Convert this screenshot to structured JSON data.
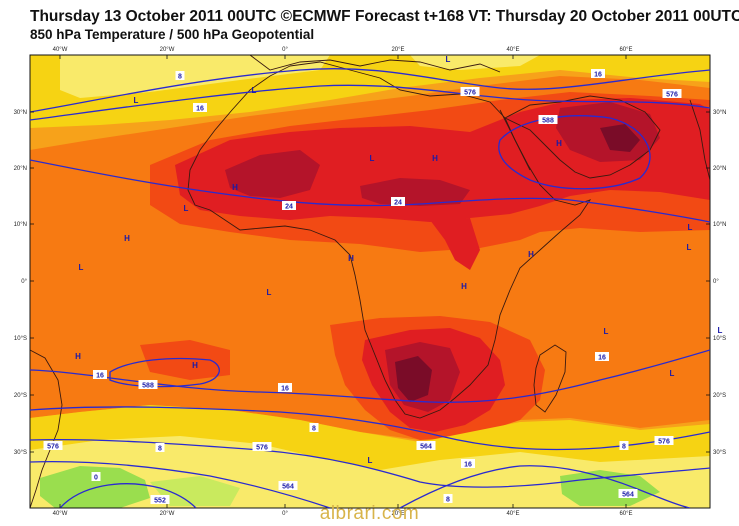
{
  "header": {
    "title": "Thursday 13 October 2011 00UTC ©ECMWF Forecast t+168 VT: Thursday 20 October 2011 00UTC",
    "subtitle": "850 hPa Temperature / 500 hPa Geopotential"
  },
  "axes": {
    "lon_ticks": [
      "40°W",
      "20°W",
      "0°",
      "20°E",
      "40°E",
      "60°E"
    ],
    "lat_ticks": [
      "30°N",
      "20°N",
      "10°N",
      "0°",
      "10°S",
      "20°S",
      "30°S"
    ]
  },
  "contour_labels": [
    "8",
    "16",
    "576",
    "16",
    "576",
    "588",
    "24",
    "24",
    "16",
    "588",
    "16",
    "8",
    "16",
    "576",
    "8",
    "564",
    "0",
    "552",
    "576",
    "564",
    "16",
    "8",
    "8",
    "576",
    "564"
  ],
  "pressure_centres": [
    "L",
    "L",
    "H",
    "L",
    "H",
    "L",
    "H",
    "H",
    "L",
    "H",
    "L",
    "H",
    "L",
    "L",
    "H",
    "L",
    "H",
    "H",
    "L",
    "L",
    "L",
    "L"
  ],
  "colors": {
    "ocean_warm": "#f7a21a",
    "temp_orange": "#f77a12",
    "temp_red_orange": "#f24a14",
    "temp_red": "#e01e22",
    "temp_dark_red": "#b4142a",
    "temp_maroon": "#7a0c28",
    "temp_yellow": "#f6d313",
    "temp_light_yellow": "#f9ea6a",
    "temp_green": "#9ade4e",
    "contour_blue": "#2a2ad0"
  },
  "watermark": "albrari.com"
}
